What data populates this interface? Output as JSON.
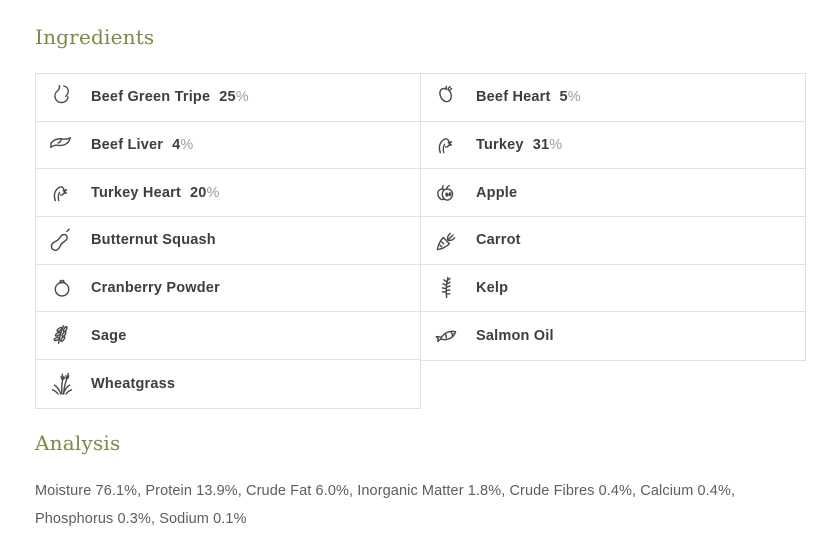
{
  "colors": {
    "heading_green": "#7b8a46",
    "ingredient_text": "#3e3e40",
    "percent_sign_gray": "#9c9c9c",
    "analysis_text_gray": "#5d5d5f",
    "table_border": "#e1e1e2",
    "icon_stroke": "#48484a"
  },
  "ingredients": {
    "title": "Ingredients",
    "percent_suffix": "%",
    "columns": [
      {
        "items": [
          {
            "icon": "stomach-icon",
            "name": "Beef Green Tripe",
            "percent": "25"
          },
          {
            "icon": "liver-icon",
            "name": "Beef Liver",
            "percent": "4"
          },
          {
            "icon": "turkey-icon",
            "name": "Turkey Heart",
            "percent": "20"
          },
          {
            "icon": "butternut-squash-icon",
            "name": "Butternut Squash",
            "percent": ""
          },
          {
            "icon": "cranberry-icon",
            "name": "Cranberry Powder",
            "percent": ""
          },
          {
            "icon": "sage-icon",
            "name": "Sage",
            "percent": ""
          },
          {
            "icon": "wheatgrass-icon",
            "name": "Wheatgrass",
            "percent": ""
          }
        ]
      },
      {
        "items": [
          {
            "icon": "beef-heart-icon",
            "name": "Beef Heart",
            "percent": "5"
          },
          {
            "icon": "turkey-icon",
            "name": "Turkey",
            "percent": "31"
          },
          {
            "icon": "apple-icon",
            "name": "Apple",
            "percent": ""
          },
          {
            "icon": "carrot-icon",
            "name": "Carrot",
            "percent": ""
          },
          {
            "icon": "kelp-icon",
            "name": "Kelp",
            "percent": ""
          },
          {
            "icon": "salmon-icon",
            "name": "Salmon Oil",
            "percent": ""
          }
        ]
      }
    ]
  },
  "analysis": {
    "title": "Analysis",
    "text": "Moisture 76.1%, Protein 13.9%, Crude Fat 6.0%, Inorganic Matter 1.8%, Crude Fibres 0.4%, Calcium 0.4%, Phosphorus 0.3%, Sodium 0.1%"
  }
}
